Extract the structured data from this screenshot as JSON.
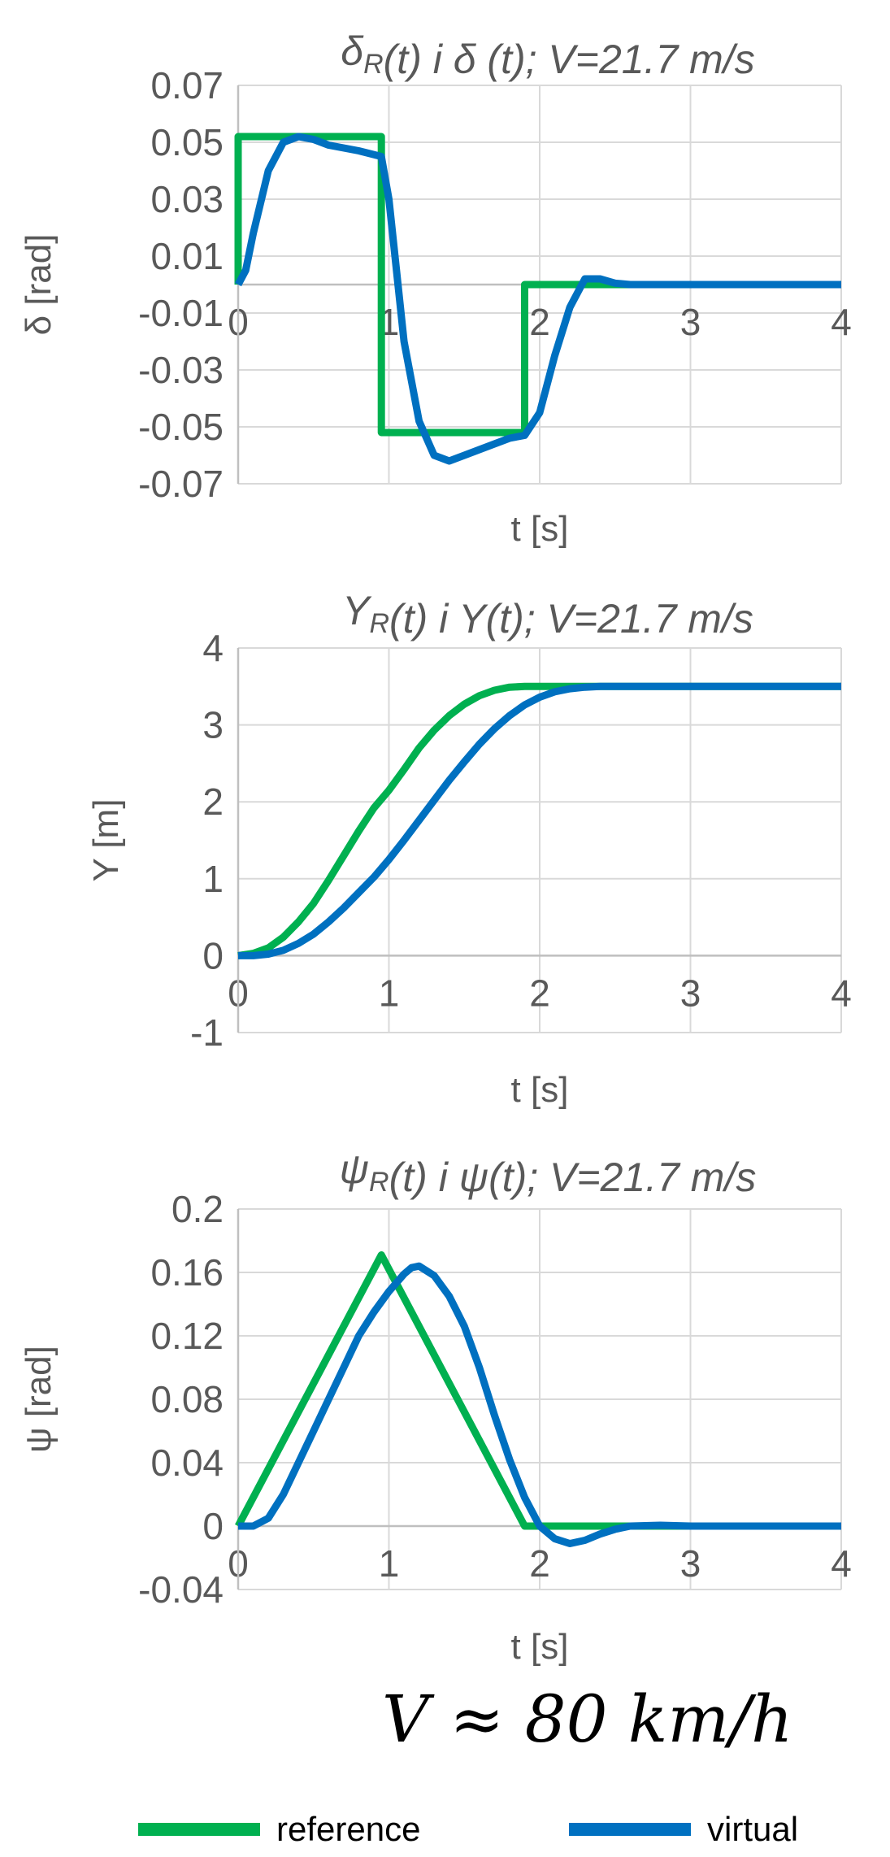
{
  "speed_label": "V ≈ 80 km/h",
  "legend": [
    {
      "label": "reference",
      "color": "#00B050"
    },
    {
      "label": "virtual",
      "color": "#0070C0"
    }
  ],
  "chart_data": [
    {
      "type": "line",
      "title_parts": [
        {
          "t": "δ"
        },
        {
          "t": "R",
          "sub": true
        },
        {
          "t": "(t) i δ (t); V=21.7 m/s"
        }
      ],
      "xlabel": "t [s]",
      "ylabel": "δ [rad]",
      "xlim": [
        0,
        4
      ],
      "ylim": [
        -0.07,
        0.07
      ],
      "xticks": [
        "0",
        "1",
        "2",
        "3",
        "4"
      ],
      "yticks": [
        "0.07",
        "0.05",
        "0.03",
        "0.01",
        "-0.01",
        "-0.03",
        "-0.05",
        "-0.07"
      ],
      "ytick_values": [
        0.07,
        0.05,
        0.03,
        0.01,
        -0.01,
        -0.03,
        -0.05,
        -0.07
      ],
      "xaxis_at_y": 0,
      "grid": true,
      "series": [
        {
          "name": "reference",
          "color": "#00B050",
          "x": [
            0,
            0,
            0.95,
            0.95,
            1.9,
            1.9,
            4
          ],
          "y": [
            0,
            0.052,
            0.052,
            -0.052,
            -0.052,
            0,
            0
          ]
        },
        {
          "name": "virtual",
          "color": "#0070C0",
          "x": [
            0,
            0.05,
            0.1,
            0.2,
            0.3,
            0.4,
            0.5,
            0.6,
            0.7,
            0.8,
            0.95,
            1.0,
            1.05,
            1.1,
            1.2,
            1.3,
            1.4,
            1.5,
            1.6,
            1.7,
            1.8,
            1.9,
            2.0,
            2.1,
            2.2,
            2.3,
            2.4,
            2.5,
            2.6,
            2.8,
            3.0,
            4.0
          ],
          "y": [
            0,
            0.005,
            0.018,
            0.04,
            0.05,
            0.052,
            0.051,
            0.049,
            0.048,
            0.047,
            0.045,
            0.03,
            0.005,
            -0.02,
            -0.048,
            -0.06,
            -0.062,
            -0.06,
            -0.058,
            -0.056,
            -0.054,
            -0.053,
            -0.045,
            -0.025,
            -0.008,
            0.002,
            0.002,
            0.0005,
            0,
            0,
            0,
            0
          ]
        }
      ]
    },
    {
      "type": "line",
      "title_parts": [
        {
          "t": "Y"
        },
        {
          "t": "R",
          "sub": true
        },
        {
          "t": "(t) i Y(t); V=21.7 m/s"
        }
      ],
      "xlabel": "t [s]",
      "ylabel": "Y [m]",
      "xlim": [
        0,
        4
      ],
      "ylim": [
        -1,
        4
      ],
      "xticks": [
        "0",
        "1",
        "2",
        "3",
        "4"
      ],
      "yticks": [
        "4",
        "3",
        "2",
        "1",
        "0",
        "-1"
      ],
      "ytick_values": [
        4,
        3,
        2,
        1,
        0,
        -1
      ],
      "xaxis_at_y": 0,
      "grid": true,
      "series": [
        {
          "name": "reference",
          "color": "#00B050",
          "x": [
            0,
            0.1,
            0.2,
            0.3,
            0.4,
            0.5,
            0.6,
            0.7,
            0.8,
            0.9,
            1.0,
            1.1,
            1.2,
            1.3,
            1.4,
            1.5,
            1.6,
            1.7,
            1.8,
            1.9,
            2.0,
            3.0,
            4.0
          ],
          "y": [
            0,
            0.03,
            0.1,
            0.24,
            0.44,
            0.68,
            0.98,
            1.3,
            1.62,
            1.92,
            2.15,
            2.42,
            2.7,
            2.93,
            3.12,
            3.27,
            3.38,
            3.45,
            3.49,
            3.5,
            3.5,
            3.5,
            3.5
          ]
        },
        {
          "name": "virtual",
          "color": "#0070C0",
          "x": [
            0,
            0.1,
            0.2,
            0.3,
            0.4,
            0.5,
            0.6,
            0.7,
            0.8,
            0.9,
            1.0,
            1.1,
            1.2,
            1.3,
            1.4,
            1.5,
            1.6,
            1.7,
            1.8,
            1.9,
            2.0,
            2.1,
            2.2,
            2.3,
            2.4,
            2.6,
            3.0,
            4.0
          ],
          "y": [
            0,
            0.0,
            0.02,
            0.07,
            0.16,
            0.28,
            0.44,
            0.62,
            0.82,
            1.02,
            1.25,
            1.5,
            1.76,
            2.02,
            2.28,
            2.52,
            2.75,
            2.95,
            3.12,
            3.26,
            3.36,
            3.43,
            3.47,
            3.49,
            3.5,
            3.5,
            3.5,
            3.5
          ]
        }
      ]
    },
    {
      "type": "line",
      "title_parts": [
        {
          "t": "ψ"
        },
        {
          "t": "R",
          "sub": true
        },
        {
          "t": "(t) i ψ(t); V=21.7 m/s"
        }
      ],
      "xlabel": "t [s]",
      "ylabel": "ψ [rad]",
      "xlim": [
        0,
        4
      ],
      "ylim": [
        -0.04,
        0.2
      ],
      "xticks": [
        "0",
        "1",
        "2",
        "3",
        "4"
      ],
      "yticks": [
        "0.2",
        "0.16",
        "0.12",
        "0.08",
        "0.04",
        "0",
        "-0.04"
      ],
      "ytick_values": [
        0.2,
        0.16,
        0.12,
        0.08,
        0.04,
        0,
        -0.04
      ],
      "xaxis_at_y": 0,
      "grid": true,
      "series": [
        {
          "name": "reference",
          "color": "#00B050",
          "x": [
            0,
            0.95,
            1.9,
            4
          ],
          "y": [
            0,
            0.171,
            0,
            0
          ]
        },
        {
          "name": "virtual",
          "color": "#0070C0",
          "x": [
            0,
            0.1,
            0.2,
            0.3,
            0.4,
            0.5,
            0.6,
            0.7,
            0.8,
            0.9,
            1.0,
            1.1,
            1.15,
            1.2,
            1.3,
            1.4,
            1.5,
            1.6,
            1.7,
            1.8,
            1.9,
            2.0,
            2.1,
            2.2,
            2.3,
            2.4,
            2.5,
            2.6,
            2.8,
            3.0,
            3.5,
            4.0
          ],
          "y": [
            0,
            0.0,
            0.005,
            0.02,
            0.04,
            0.06,
            0.08,
            0.1,
            0.12,
            0.135,
            0.148,
            0.159,
            0.163,
            0.164,
            0.158,
            0.145,
            0.126,
            0.1,
            0.07,
            0.042,
            0.018,
            0.0,
            -0.008,
            -0.011,
            -0.009,
            -0.005,
            -0.002,
            0.0,
            0.0005,
            0,
            0,
            0
          ]
        }
      ]
    }
  ]
}
